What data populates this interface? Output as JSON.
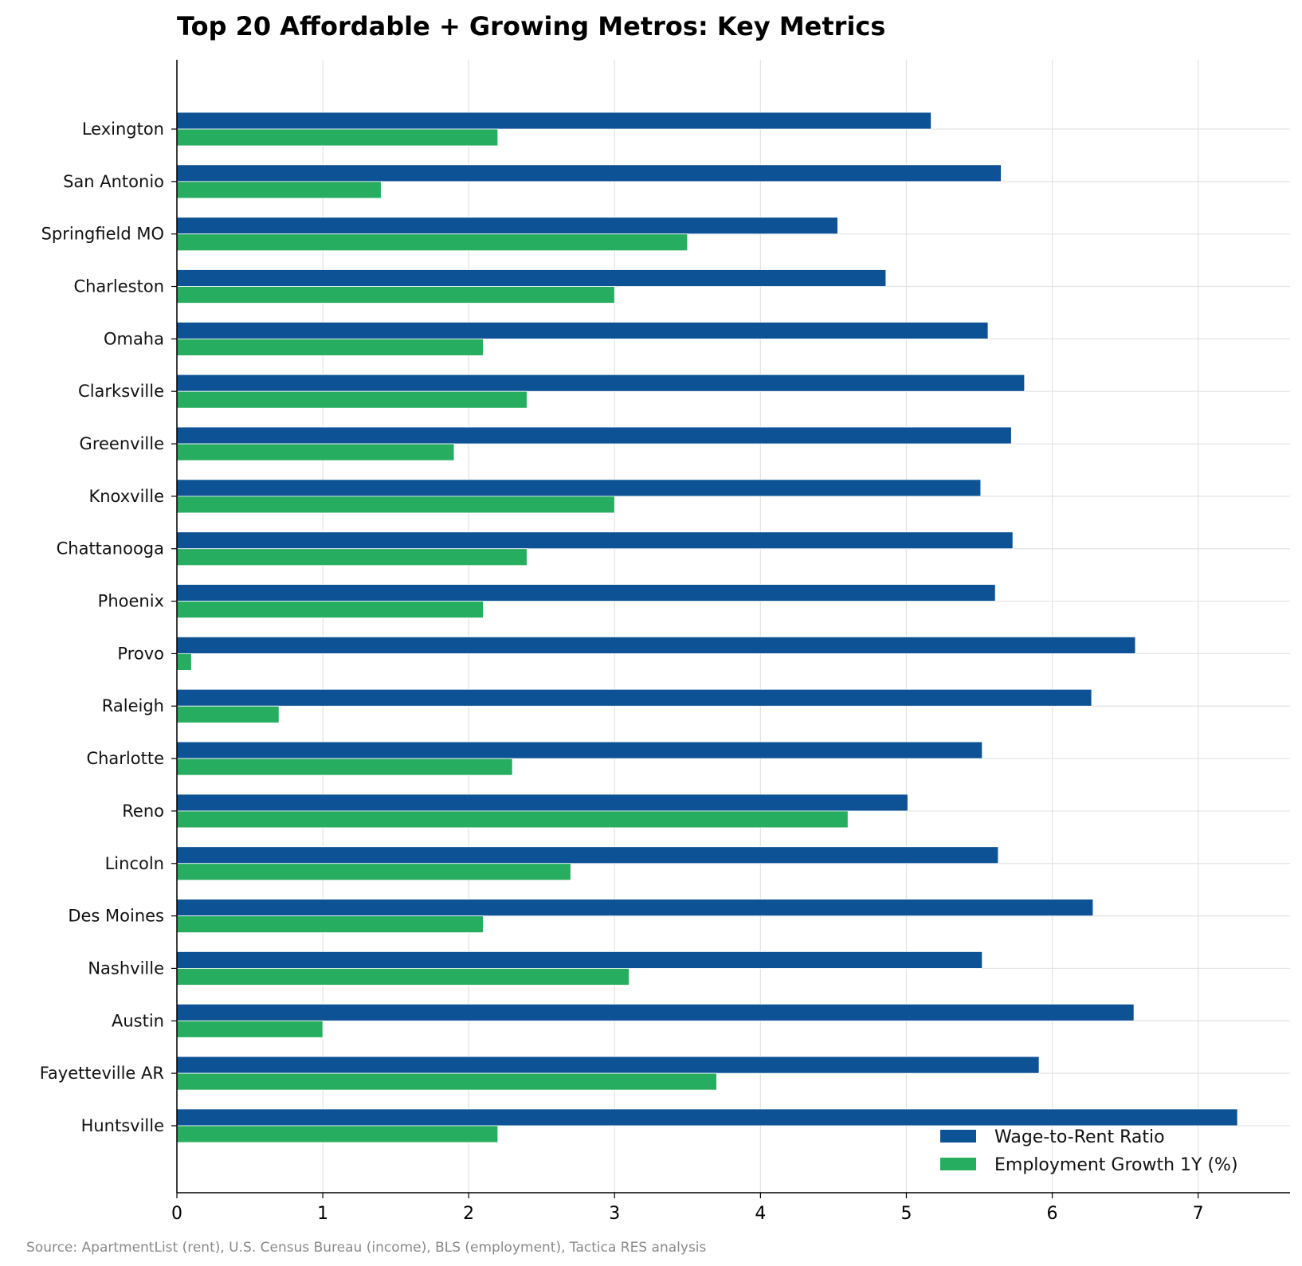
{
  "chart_data": {
    "type": "bar",
    "orientation": "horizontal",
    "title": "Top 20 Affordable + Growing Metros: Key Metrics",
    "categories": [
      "Lexington",
      "San Antonio",
      "Springfield MO",
      "Charleston",
      "Omaha",
      "Clarksville",
      "Greenville",
      "Knoxville",
      "Chattanooga",
      "Phoenix",
      "Provo",
      "Raleigh",
      "Charlotte",
      "Reno",
      "Lincoln",
      "Des Moines",
      "Nashville",
      "Austin",
      "Fayetteville AR",
      "Huntsville"
    ],
    "series": [
      {
        "name": "Wage-to-Rent Ratio",
        "color": "#0d5294",
        "values": [
          5.17,
          5.65,
          4.53,
          4.86,
          5.56,
          5.81,
          5.72,
          5.51,
          5.73,
          5.61,
          6.57,
          6.27,
          5.52,
          5.01,
          5.63,
          6.28,
          5.52,
          6.56,
          5.91,
          7.27
        ]
      },
      {
        "name": "Employment Growth 1Y (%)",
        "color": "#27ad5f",
        "values": [
          2.2,
          1.4,
          3.5,
          3.0,
          2.1,
          2.4,
          1.9,
          3.0,
          2.4,
          2.1,
          0.1,
          0.7,
          2.3,
          4.6,
          2.7,
          2.1,
          3.1,
          1.0,
          3.7,
          2.2
        ]
      }
    ],
    "xticks": [
      0,
      1,
      2,
      3,
      4,
      5,
      6,
      7
    ],
    "xlim": [
      0,
      7.63
    ],
    "xlabel": "",
    "ylabel": "",
    "grid": true,
    "legend_position": "bottom-right",
    "source_note": "Source: ApartmentList (rent), U.S. Census Bureau (income), BLS (employment), Tactica RES analysis"
  }
}
